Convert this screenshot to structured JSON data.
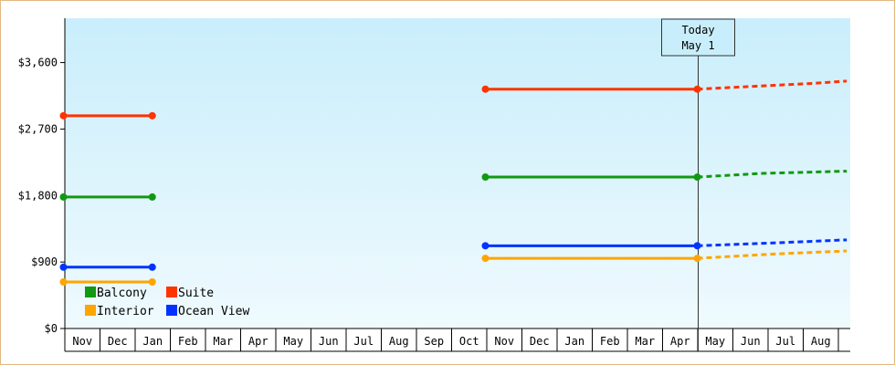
{
  "chart_data": {
    "type": "line",
    "y_tick_labels": [
      "$0",
      "$900",
      "$1,800",
      "$2,700",
      "$3,600"
    ],
    "y_ticks": [
      0,
      900,
      1800,
      2700,
      3600
    ],
    "ylim": [
      0,
      4200
    ],
    "months": [
      "Nov",
      "Dec",
      "Jan",
      "Feb",
      "Mar",
      "Apr",
      "May",
      "Jun",
      "Jul",
      "Aug",
      "Sep",
      "Oct",
      "Nov",
      "Dec",
      "Jan",
      "Feb",
      "Mar",
      "Apr",
      "May",
      "Jun",
      "Jul",
      "Aug"
    ],
    "today": {
      "line1": "Today",
      "line2": "May 1",
      "month_index": 18
    },
    "series": [
      {
        "name": "Suite",
        "color": "#ff3300",
        "segments": [
          {
            "start": 0,
            "end": 2.5,
            "value": 2880
          },
          {
            "start": 12,
            "end": 18,
            "value": 3240
          }
        ],
        "forecast": [
          [
            18,
            3240
          ],
          [
            21.3,
            3320
          ],
          [
            22.2,
            3350
          ]
        ]
      },
      {
        "name": "Balcony",
        "color": "#119911",
        "segments": [
          {
            "start": 0,
            "end": 2.5,
            "value": 1780
          },
          {
            "start": 12,
            "end": 18,
            "value": 2050
          }
        ],
        "forecast": [
          [
            18,
            2050
          ],
          [
            19.8,
            2100
          ],
          [
            22.2,
            2130
          ]
        ]
      },
      {
        "name": "Ocean View",
        "color": "#0033ff",
        "segments": [
          {
            "start": 0,
            "end": 2.5,
            "value": 830
          },
          {
            "start": 12,
            "end": 18,
            "value": 1120
          }
        ],
        "forecast": [
          [
            18,
            1120
          ],
          [
            20.2,
            1160
          ],
          [
            22.2,
            1200
          ]
        ]
      },
      {
        "name": "Interior",
        "color": "#ffa500",
        "segments": [
          {
            "start": 0,
            "end": 2.5,
            "value": 630
          },
          {
            "start": 12,
            "end": 18,
            "value": 950
          }
        ],
        "forecast": [
          [
            18,
            950
          ],
          [
            20.2,
            1010
          ],
          [
            22.2,
            1050
          ]
        ]
      }
    ],
    "legend": [
      {
        "name": "Balcony",
        "color": "#119911"
      },
      {
        "name": "Suite",
        "color": "#ff3300"
      },
      {
        "name": "Interior",
        "color": "#ffa500"
      },
      {
        "name": "Ocean View",
        "color": "#0033ff"
      }
    ],
    "colors": {
      "plot_top": "#c9eefb",
      "plot_bottom": "#effafe",
      "frame": "#e3b882"
    }
  }
}
